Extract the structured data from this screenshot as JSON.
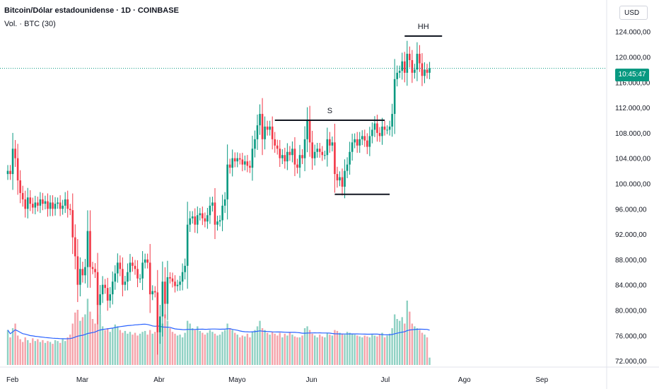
{
  "header": {
    "title": "Bitcoin/Dólar estadounidense · 1D · COINBASE",
    "volume_label": "Vol. · BTC (30)",
    "currency": "USD",
    "countdown": "10:45:47"
  },
  "colors": {
    "up": "#089981",
    "down": "#f23645",
    "up_vol": "#8fd1c3",
    "down_vol": "#f5a3aa",
    "vol_ma": "#2962ff",
    "price_line": "#089981",
    "annotation": "#131722"
  },
  "chart_data": {
    "type": "candlestick",
    "ylim": [
      71000,
      129000
    ],
    "y_ticks": [
      "72.000,00",
      "76.000,00",
      "80.000,00",
      "84.000,00",
      "88.000,00",
      "92.000,00",
      "96.000,00",
      "100.000,00",
      "104.000,00",
      "108.000,00",
      "112.000,00",
      "116.000,00",
      "120.000,00",
      "124.000,00"
    ],
    "y_tick_values": [
      72000,
      76000,
      80000,
      84000,
      88000,
      92000,
      96000,
      100000,
      104000,
      108000,
      112000,
      116000,
      120000,
      124000
    ],
    "x_ticks": [
      "Feb",
      "Mar",
      "Abr",
      "Mayo",
      "Jun",
      "Jul",
      "Ago",
      "Sep"
    ],
    "x_tick_days": [
      0,
      28,
      59,
      89,
      120,
      150,
      181,
      212
    ],
    "current_price": 118200,
    "annotations": [
      {
        "label": "S",
        "price": 110000,
        "from_day": 107,
        "to_day": 151
      },
      {
        "label": "",
        "price": 98300,
        "from_day": 131,
        "to_day": 153
      },
      {
        "label": "HH",
        "price": 123300,
        "from_day": 159,
        "to_day": 174
      }
    ],
    "closes": [
      102000,
      101500,
      105500,
      104000,
      100500,
      98500,
      97500,
      96000,
      97800,
      96800,
      96200,
      97000,
      96500,
      97500,
      96800,
      97200,
      96000,
      97000,
      96000,
      96800,
      97000,
      96000,
      96500,
      97500,
      96000,
      95800,
      91500,
      88500,
      84000,
      86500,
      85500,
      86800,
      92500,
      86800,
      86500,
      86000,
      80800,
      82500,
      84000,
      83500,
      81500,
      82500,
      84500,
      85800,
      87500,
      86500,
      84000,
      84500,
      86000,
      87500,
      87000,
      86500,
      85000,
      85000,
      87500,
      88000,
      87500,
      82500,
      83000,
      82800,
      76500,
      79000,
      84500,
      81000,
      85200,
      85000,
      84500,
      83800,
      84000,
      84500,
      86000,
      87000,
      93500,
      94500,
      94800,
      93500,
      95000,
      95300,
      94500,
      94000,
      95000,
      96500,
      97000,
      93500,
      94000,
      94200,
      96500,
      97500,
      103000,
      102500,
      104000,
      103500,
      104000,
      103800,
      103000,
      103500,
      102800,
      102500,
      105500,
      107000,
      109200,
      111000,
      107000,
      109000,
      108500,
      109000,
      107000,
      106000,
      105500,
      104000,
      104500,
      103500,
      105000,
      104500,
      105500,
      103000,
      102500,
      104500,
      104000,
      107000,
      110000,
      106500,
      104000,
      105000,
      105500,
      105000,
      104500,
      104500,
      107000,
      106000,
      106500,
      101500,
      100500,
      101000,
      99500,
      102000,
      103000,
      105000,
      106500,
      107000,
      106000,
      107000,
      107500,
      106800,
      105800,
      107500,
      108500,
      109500,
      108000,
      107500,
      109000,
      108500,
      108500,
      109000,
      111000,
      116500,
      117500,
      117800,
      119300,
      117500,
      120500,
      119500,
      117500,
      118000,
      120500,
      119000,
      117000,
      118000,
      117500,
      118200
    ],
    "volumes": [
      38,
      30,
      40,
      45,
      32,
      28,
      25,
      30,
      27,
      24,
      29,
      26,
      28,
      25,
      27,
      24,
      26,
      25,
      23,
      27,
      26,
      24,
      28,
      26,
      30,
      33,
      45,
      57,
      60,
      48,
      52,
      55,
      72,
      58,
      50,
      45,
      65,
      55,
      42,
      38,
      40,
      36,
      40,
      44,
      42,
      38,
      35,
      37,
      34,
      36,
      33,
      35,
      32,
      34,
      36,
      37,
      33,
      38,
      34,
      36,
      60,
      50,
      45,
      55,
      48,
      40,
      36,
      34,
      32,
      33,
      30,
      35,
      48,
      45,
      40,
      38,
      42,
      37,
      35,
      33,
      35,
      38,
      36,
      34,
      32,
      33,
      36,
      38,
      45,
      40,
      38,
      35,
      33,
      30,
      32,
      31,
      34,
      30,
      36,
      38,
      42,
      48,
      40,
      38,
      35,
      33,
      36,
      34,
      32,
      35,
      30,
      34,
      32,
      35,
      33,
      31,
      30,
      30,
      32,
      40,
      42,
      38,
      34,
      32,
      30,
      33,
      31,
      30,
      35,
      33,
      32,
      38,
      37,
      35,
      34,
      33,
      36,
      35,
      34,
      33,
      32,
      31,
      30,
      32,
      31,
      30,
      33,
      32,
      31,
      33,
      35,
      30,
      32,
      34,
      40,
      55,
      50,
      48,
      52,
      45,
      70,
      58,
      45,
      42,
      40,
      38,
      35,
      33,
      30,
      8
    ]
  }
}
